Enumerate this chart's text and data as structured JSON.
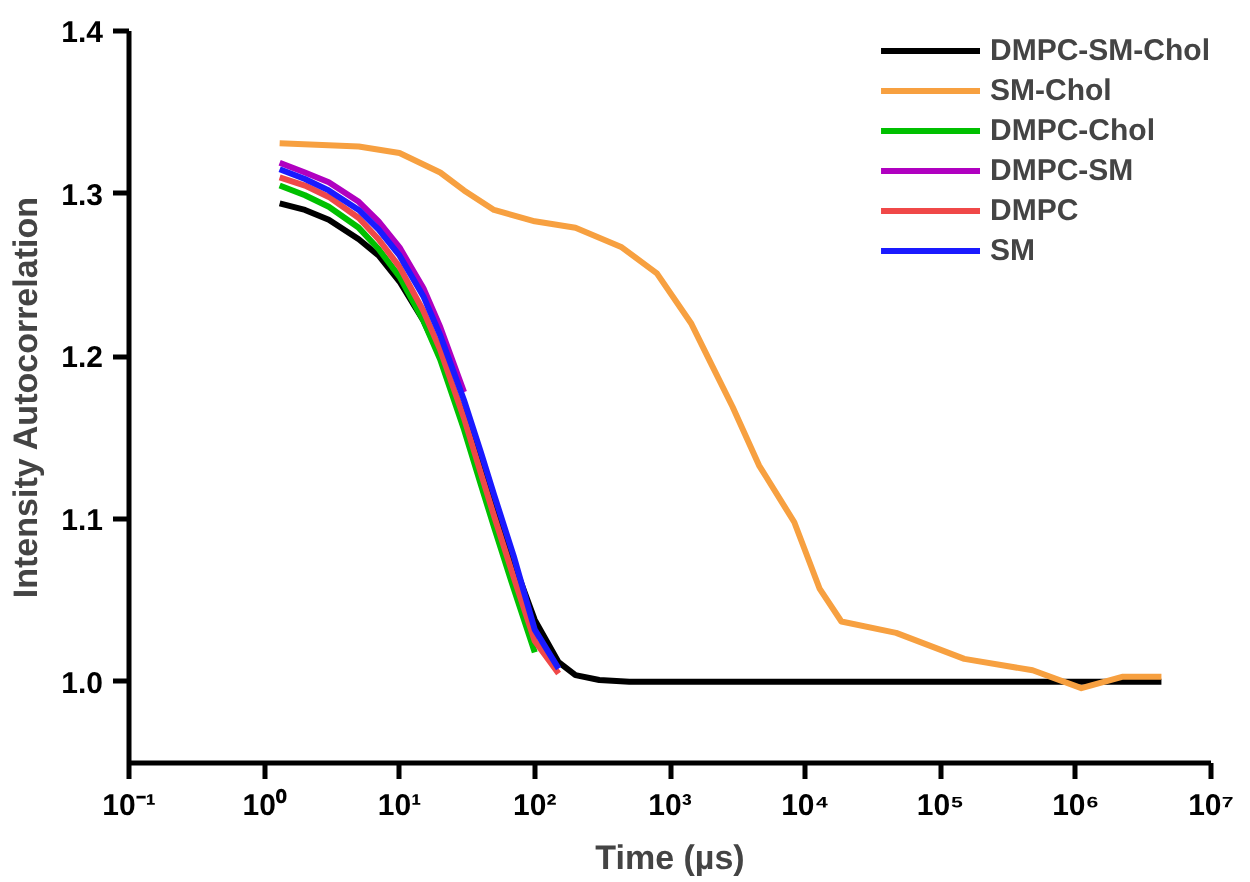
{
  "chart_data": {
    "type": "line",
    "xlabel": "Time (µs)",
    "ylabel": "Intensity Autocorrelation",
    "log": "x",
    "legend": "top right",
    "grid": false,
    "line_style": "solid",
    "marker": "none",
    "xlim": [
      0.1,
      10000000
    ],
    "ylim": [
      0.95,
      1.4
    ],
    "xticks": [
      {
        "value": 0.1,
        "label": "10⁻¹"
      },
      {
        "value": 1,
        "label": "10⁰"
      },
      {
        "value": 10,
        "label": "10¹"
      },
      {
        "value": 100,
        "label": "10²"
      },
      {
        "value": 1000,
        "label": "10³"
      },
      {
        "value": 10000,
        "label": "10⁴"
      },
      {
        "value": 100000,
        "label": "10⁵"
      },
      {
        "value": 1000000,
        "label": "10⁶"
      },
      {
        "value": 10000000,
        "label": "10⁷"
      }
    ],
    "yticks": [
      {
        "value": 1.0,
        "label": "1.0"
      },
      {
        "value": 1.1,
        "label": "1.1"
      },
      {
        "value": 1.2,
        "label": "1.2"
      },
      {
        "value": 1.3,
        "label": "1.3"
      },
      {
        "value": 1.4,
        "label": "1.4"
      }
    ],
    "series": [
      {
        "name": "DMPC-SM-Chol",
        "color": "#000000",
        "x": [
          1.3,
          2,
          3,
          5,
          7,
          10,
          15,
          20,
          30,
          40,
          50,
          70,
          100,
          150,
          200,
          300,
          500,
          1000,
          10000,
          100000,
          1000000,
          4300000
        ],
        "values": [
          1.294,
          1.29,
          1.284,
          1.272,
          1.262,
          1.246,
          1.222,
          1.2,
          1.163,
          1.133,
          1.108,
          1.073,
          1.038,
          1.012,
          1.004,
          1.001,
          1.0,
          1.0,
          1.0,
          1.0,
          1.0,
          1.0
        ]
      },
      {
        "name": "SM-Chol",
        "color": "#f7a040",
        "x": [
          1.3,
          5,
          10,
          20,
          30,
          50,
          100,
          200,
          440,
          800,
          1440,
          2000,
          2900,
          4550,
          8300,
          12800,
          18500,
          47000,
          150000,
          480000,
          1100000,
          2200000,
          4300000
        ],
        "values": [
          1.331,
          1.329,
          1.325,
          1.313,
          1.302,
          1.29,
          1.283,
          1.279,
          1.267,
          1.251,
          1.22,
          1.196,
          1.169,
          1.133,
          1.098,
          1.057,
          1.037,
          1.03,
          1.014,
          1.007,
          0.996,
          1.003,
          1.003
        ]
      },
      {
        "name": "DMPC-Chol",
        "color": "#00c000",
        "x": [
          1.3,
          2,
          3,
          5,
          7,
          10,
          15,
          20,
          30,
          40,
          50,
          70,
          100
        ],
        "values": [
          1.305,
          1.299,
          1.292,
          1.279,
          1.266,
          1.249,
          1.222,
          1.198,
          1.155,
          1.121,
          1.095,
          1.057,
          1.018
        ]
      },
      {
        "name": "DMPC-SM",
        "color": "#b000c0",
        "x": [
          1.3,
          2,
          3,
          5,
          7,
          10,
          15,
          20,
          30
        ],
        "values": [
          1.319,
          1.313,
          1.307,
          1.295,
          1.283,
          1.267,
          1.242,
          1.218,
          1.178
        ]
      },
      {
        "name": "DMPC",
        "color": "#f04848",
        "x": [
          1.3,
          2,
          3,
          5,
          7,
          10,
          15,
          20,
          30,
          40,
          50,
          70,
          100,
          150
        ],
        "values": [
          1.31,
          1.305,
          1.298,
          1.285,
          1.272,
          1.255,
          1.228,
          1.204,
          1.162,
          1.128,
          1.102,
          1.064,
          1.025,
          1.005
        ]
      },
      {
        "name": "SM",
        "color": "#1a1aff",
        "x": [
          1.3,
          2,
          3,
          5,
          7,
          10,
          15,
          20,
          30,
          40,
          50,
          70,
          100,
          150
        ],
        "values": [
          1.315,
          1.309,
          1.302,
          1.29,
          1.278,
          1.262,
          1.237,
          1.213,
          1.173,
          1.141,
          1.115,
          1.077,
          1.032,
          1.008
        ]
      }
    ]
  }
}
